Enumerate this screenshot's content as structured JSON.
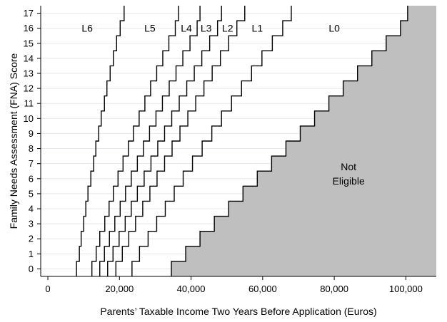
{
  "chart_data": {
    "type": "line",
    "xlabel": "Parents’ Taxable Income Two Years Before Application (Euros)",
    "ylabel": "Family Needs Assessment (FNA) Score",
    "xlim": [
      -2000,
      108500
    ],
    "ylim": [
      -0.5,
      17.5
    ],
    "x_ticks": [
      0,
      20000,
      40000,
      60000,
      80000,
      100000
    ],
    "x_tick_labels": [
      "0",
      "20,000",
      "40,000",
      "60,000",
      "80,000",
      "100,000"
    ],
    "y_ticks": [
      0,
      1,
      2,
      3,
      4,
      5,
      6,
      7,
      8,
      9,
      10,
      11,
      12,
      13,
      14,
      15,
      16,
      17
    ],
    "y_tick_labels": [
      "0",
      "1",
      "2",
      "3",
      "4",
      "5",
      "6",
      "7",
      "8",
      "9",
      "10",
      "11",
      "12",
      "13",
      "14",
      "15",
      "16",
      "17"
    ],
    "grid": true,
    "step_height": 1,
    "series": [
      {
        "name": "",
        "x": [
          8000,
          8800,
          9300,
          10000,
          10600,
          11200,
          12000,
          12800,
          13400,
          14200,
          14900,
          15800,
          16500,
          17400,
          18300,
          19200,
          20200,
          21300
        ]
      },
      {
        "name": "",
        "x": [
          12300,
          13500,
          14500,
          15900,
          17100,
          18300,
          19600,
          21000,
          22500,
          23900,
          25500,
          27100,
          28700,
          30400,
          32100,
          33800,
          35600,
          36500
        ]
      },
      {
        "name": "",
        "x": [
          14500,
          15800,
          17200,
          18700,
          20200,
          21700,
          23300,
          25000,
          26700,
          28400,
          30200,
          32000,
          33900,
          35800,
          37700,
          39700,
          41700,
          42500
        ]
      },
      {
        "name": "",
        "x": [
          16700,
          18200,
          19900,
          21600,
          23300,
          25000,
          26900,
          28800,
          30700,
          32600,
          34600,
          36700,
          38800,
          40900,
          43000,
          45200,
          47400,
          48500
        ]
      },
      {
        "name": "",
        "x": [
          19000,
          20800,
          22600,
          24500,
          26500,
          28500,
          30500,
          32600,
          34700,
          36900,
          39100,
          41300,
          43600,
          45900,
          48200,
          50500,
          52800,
          55000
        ]
      },
      {
        "name": "",
        "x": [
          23500,
          25600,
          28000,
          30400,
          32800,
          35300,
          37800,
          40400,
          43100,
          45800,
          48500,
          51300,
          54100,
          56900,
          59800,
          62700,
          65600,
          68000
        ]
      },
      {
        "name": "",
        "x": [
          34500,
          38500,
          42500,
          46500,
          50500,
          54500,
          58500,
          62500,
          66500,
          70500,
          74500,
          78500,
          82500,
          86500,
          90500,
          94500,
          98500,
          100500
        ]
      }
    ],
    "band_labels": [
      {
        "text": "L6",
        "x": 11000,
        "y": 16
      },
      {
        "text": "L5",
        "x": 28500,
        "y": 16
      },
      {
        "text": "L4",
        "x": 38700,
        "y": 16
      },
      {
        "text": "L3",
        "x": 44200,
        "y": 16
      },
      {
        "text": "L2",
        "x": 50200,
        "y": 16
      },
      {
        "text": "L1",
        "x": 58500,
        "y": 16
      },
      {
        "text": "L0",
        "x": 80000,
        "y": 16
      }
    ],
    "region_label": {
      "lines": [
        "Not",
        "Eligible"
      ],
      "x": 84000,
      "y": 6.8
    },
    "colors": {
      "not_eligible": "#bfbfbf",
      "grid": "#e5e8ec",
      "line": "#000000"
    }
  }
}
